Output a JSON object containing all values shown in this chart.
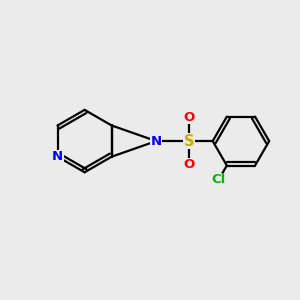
{
  "background_color": "#ebebeb",
  "bond_color": "#000000",
  "nitrogen_color": "#0000ff",
  "sulfur_color": "#ccaa00",
  "oxygen_color": "#ff0000",
  "chlorine_color": "#00bb00",
  "line_width": 1.6,
  "font_size_atoms": 9.5,
  "fig_width": 3.0,
  "fig_height": 3.0,
  "dpi": 100,
  "xlim": [
    0,
    10
  ],
  "ylim": [
    0,
    10
  ]
}
